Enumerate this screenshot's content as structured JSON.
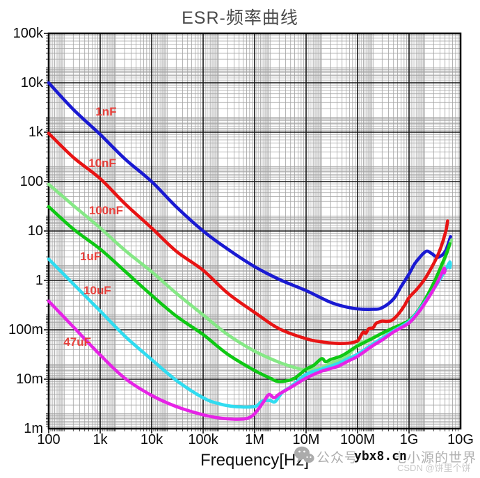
{
  "chart": {
    "title": "ESR-频率曲线"
  },
  "chart_data": {
    "type": "line",
    "title": "ESR-频率曲线",
    "xlabel": "Frequency[Hz]",
    "ylabel": "",
    "x_scale": "log",
    "y_scale": "log",
    "xlim": [
      100,
      10000000000
    ],
    "ylim": [
      0.001,
      100000
    ],
    "grid": "major-and-minor",
    "legend_position": "inline-labels",
    "label_color": "#e8413c",
    "x_ticks": [
      {
        "f": 100,
        "label": "100"
      },
      {
        "f": 1000,
        "label": "1k"
      },
      {
        "f": 10000,
        "label": "10k"
      },
      {
        "f": 100000,
        "label": "100k"
      },
      {
        "f": 1000000.0,
        "label": "1M"
      },
      {
        "f": 10000000.0,
        "label": "10M"
      },
      {
        "f": 100000000.0,
        "label": "100M"
      },
      {
        "f": 1000000000.0,
        "label": "1G"
      },
      {
        "f": 10000000000.0,
        "label": "10G"
      }
    ],
    "y_ticks": [
      {
        "v": 100000,
        "label": "100k"
      },
      {
        "v": 10000,
        "label": "10k"
      },
      {
        "v": 1000,
        "label": "1k"
      },
      {
        "v": 100,
        "label": "100"
      },
      {
        "v": 10,
        "label": "10"
      },
      {
        "v": 1,
        "label": "1"
      },
      {
        "v": 0.1,
        "label": "100m"
      },
      {
        "v": 0.01,
        "label": "10m"
      },
      {
        "v": 0.001,
        "label": "1m"
      }
    ],
    "series": [
      {
        "name": "1nF",
        "label": "1nF",
        "color": "#1a1ad2",
        "label_f": 1300,
        "label_r": 2600,
        "points": [
          [
            100,
            10000
          ],
          [
            300,
            2900
          ],
          [
            1000,
            900
          ],
          [
            3000,
            290
          ],
          [
            10000,
            100
          ],
          [
            30000,
            31
          ],
          [
            100000,
            10
          ],
          [
            300000,
            4.3
          ],
          [
            1000000.0,
            1.9
          ],
          [
            3000000.0,
            1.05
          ],
          [
            10000000.0,
            0.62
          ],
          [
            30000000.0,
            0.36
          ],
          [
            60000000.0,
            0.29
          ],
          [
            100000000.0,
            0.265
          ],
          [
            200000000.0,
            0.26
          ],
          [
            300000000.0,
            0.28
          ],
          [
            500000000.0,
            0.42
          ],
          [
            700000000.0,
            0.75
          ],
          [
            1000000000.0,
            1.35
          ],
          [
            1260000000.0,
            2.1
          ],
          [
            1600000000.0,
            2.9
          ],
          [
            2000000000.0,
            3.7
          ],
          [
            2300000000.0,
            3.9
          ],
          [
            2800000000.0,
            3.45
          ],
          [
            3500000000.0,
            2.95
          ],
          [
            4400000000.0,
            3.25
          ],
          [
            5200000000.0,
            4.1
          ],
          [
            5800000000.0,
            5.6
          ],
          [
            6400000000.0,
            7.7
          ]
        ]
      },
      {
        "name": "100nF",
        "label": "100nF",
        "color": "#86e886",
        "label_f": 1300,
        "label_r": 26,
        "points": [
          [
            100,
            88
          ],
          [
            300,
            33
          ],
          [
            1000,
            11.5
          ],
          [
            3000,
            4.1
          ],
          [
            10000,
            1.5
          ],
          [
            30000,
            0.55
          ],
          [
            100000,
            0.2
          ],
          [
            300000,
            0.08
          ],
          [
            1000000.0,
            0.037
          ],
          [
            3000000.0,
            0.022
          ],
          [
            7000000.0,
            0.0165
          ],
          [
            10000000.0,
            0.0155
          ],
          [
            20000000.0,
            0.017
          ],
          [
            30000000.0,
            0.021
          ],
          [
            60000000.0,
            0.028
          ],
          [
            100000000.0,
            0.05
          ],
          [
            160000000.0,
            0.062
          ],
          [
            250000000.0,
            0.078
          ],
          [
            400000000.0,
            0.095
          ],
          [
            630000000.0,
            0.115
          ],
          [
            1000000000.0,
            0.14
          ],
          [
            1600000000.0,
            0.24
          ],
          [
            2500000000.0,
            0.55
          ],
          [
            3500000000.0,
            1.15
          ],
          [
            4500000000.0,
            2.1
          ],
          [
            5500000000.0,
            3.8
          ],
          [
            6700000000.0,
            6.6
          ]
        ]
      },
      {
        "name": "1uF",
        "label": "1uF",
        "color": "#0fc814",
        "label_f": 650,
        "label_r": 3.0,
        "points": [
          [
            100,
            31
          ],
          [
            300,
            11
          ],
          [
            1000,
            4.3
          ],
          [
            3000,
            1.55
          ],
          [
            10000,
            0.5
          ],
          [
            30000,
            0.19
          ],
          [
            100000,
            0.08
          ],
          [
            300000,
            0.032
          ],
          [
            1000000.0,
            0.015
          ],
          [
            2000000.0,
            0.0105
          ],
          [
            2800000.0,
            0.009
          ],
          [
            4000000.0,
            0.0092
          ],
          [
            6000000.0,
            0.0105
          ],
          [
            10000000.0,
            0.016
          ],
          [
            14000000.0,
            0.019
          ],
          [
            20000000.0,
            0.026
          ],
          [
            24000000.0,
            0.0225
          ],
          [
            30000000.0,
            0.025
          ],
          [
            50000000.0,
            0.03
          ],
          [
            80000000.0,
            0.041
          ],
          [
            100000000.0,
            0.047
          ],
          [
            200000000.0,
            0.068
          ],
          [
            300000000.0,
            0.085
          ],
          [
            500000000.0,
            0.11
          ],
          [
            1000000000.0,
            0.155
          ],
          [
            1600000000.0,
            0.27
          ],
          [
            2500000000.0,
            0.6
          ],
          [
            3500000000.0,
            1.25
          ],
          [
            4500000000.0,
            2.3
          ],
          [
            5400000000.0,
            3.6
          ],
          [
            6200000000.0,
            5.5
          ]
        ]
      },
      {
        "name": "10uF",
        "label": "10uF",
        "color": "#30dcf0",
        "label_f": 880,
        "label_r": 0.62,
        "points": [
          [
            100,
            2.7
          ],
          [
            300,
            0.85
          ],
          [
            1000,
            0.24
          ],
          [
            3000,
            0.075
          ],
          [
            10000,
            0.025
          ],
          [
            30000,
            0.0095
          ],
          [
            100000,
            0.0042
          ],
          [
            200000,
            0.0032
          ],
          [
            400000,
            0.0028
          ],
          [
            1000000.0,
            0.0028
          ],
          [
            1400000.0,
            0.0036
          ],
          [
            2000000.0,
            0.0037
          ],
          [
            2500000.0,
            0.0035
          ],
          [
            3500000.0,
            0.0055
          ],
          [
            5000000.0,
            0.007
          ],
          [
            10000000.0,
            0.0125
          ],
          [
            20000000.0,
            0.016
          ],
          [
            40000000.0,
            0.0205
          ],
          [
            70000000.0,
            0.027
          ],
          [
            100000000.0,
            0.032
          ],
          [
            200000000.0,
            0.052
          ],
          [
            300000000.0,
            0.068
          ],
          [
            500000000.0,
            0.095
          ],
          [
            1000000000.0,
            0.148
          ],
          [
            1600000000.0,
            0.26
          ],
          [
            2500000000.0,
            0.5
          ],
          [
            3500000000.0,
            0.85
          ],
          [
            4500000000.0,
            1.3
          ],
          [
            5500000000.0,
            1.9
          ],
          [
            6200000000.0,
            2.35
          ],
          [
            6350000000.0,
            2.1
          ],
          [
            6200000000.0,
            1.8
          ]
        ]
      },
      {
        "name": "47uF",
        "label": "47uF",
        "color": "#e623e6",
        "label_f": 360,
        "label_r": 0.056,
        "points": [
          [
            100,
            0.38
          ],
          [
            300,
            0.115
          ],
          [
            1000,
            0.031
          ],
          [
            3000,
            0.0105
          ],
          [
            10000,
            0.0047
          ],
          [
            30000,
            0.0028
          ],
          [
            100000,
            0.0019
          ],
          [
            200000,
            0.00165
          ],
          [
            400000,
            0.00155
          ],
          [
            700000,
            0.0016
          ],
          [
            1000000.0,
            0.002
          ],
          [
            1500000.0,
            0.0035
          ],
          [
            1900000.0,
            0.0049
          ],
          [
            2400000.0,
            0.0042
          ],
          [
            3000000.0,
            0.005
          ],
          [
            5000000.0,
            0.0068
          ],
          [
            10000000.0,
            0.0105
          ],
          [
            20000000.0,
            0.0145
          ],
          [
            40000000.0,
            0.018
          ],
          [
            70000000.0,
            0.024
          ],
          [
            100000000.0,
            0.029
          ],
          [
            200000000.0,
            0.048
          ],
          [
            300000000.0,
            0.062
          ],
          [
            500000000.0,
            0.09
          ],
          [
            1000000000.0,
            0.138
          ],
          [
            1600000000.0,
            0.24
          ],
          [
            2500000000.0,
            0.48
          ],
          [
            3200000000.0,
            0.75
          ],
          [
            3900000000.0,
            1.1
          ],
          [
            4400000000.0,
            1.45
          ],
          [
            4800000000.0,
            1.75
          ],
          [
            5000000000.0,
            1.62
          ],
          [
            4850000000.0,
            1.42
          ]
        ]
      },
      {
        "name": "10nF",
        "label": "10nF",
        "color": "#e81414",
        "label_f": 1100,
        "label_r": 230,
        "points": [
          [
            100,
            950
          ],
          [
            300,
            310
          ],
          [
            1000,
            115
          ],
          [
            3000,
            36
          ],
          [
            10000,
            11.5
          ],
          [
            30000,
            3.9
          ],
          [
            100000,
            1.6
          ],
          [
            300000,
            0.55
          ],
          [
            1000000.0,
            0.225
          ],
          [
            3000000.0,
            0.105
          ],
          [
            10000000.0,
            0.066
          ],
          [
            20000000.0,
            0.057
          ],
          [
            40000000.0,
            0.053
          ],
          [
            70000000.0,
            0.054
          ],
          [
            100000000.0,
            0.06
          ],
          [
            115000000.0,
            0.075
          ],
          [
            130000000.0,
            0.09
          ],
          [
            145000000.0,
            0.085
          ],
          [
            165000000.0,
            0.105
          ],
          [
            200000000.0,
            0.11
          ],
          [
            230000000.0,
            0.135
          ],
          [
            300000000.0,
            0.15
          ],
          [
            360000000.0,
            0.148
          ],
          [
            460000000.0,
            0.155
          ],
          [
            600000000.0,
            0.2
          ],
          [
            800000000.0,
            0.3
          ],
          [
            1000000000.0,
            0.45
          ],
          [
            1400000000.0,
            0.65
          ],
          [
            2000000000.0,
            1.05
          ],
          [
            2800000000.0,
            1.9
          ],
          [
            3500000000.0,
            3.0
          ],
          [
            4200000000.0,
            4.8
          ],
          [
            4800000000.0,
            7.5
          ],
          [
            5300000000.0,
            11
          ],
          [
            5600000000.0,
            16
          ]
        ]
      }
    ]
  },
  "watermark": {
    "icon": "wechat-icon",
    "prefix": "公众号",
    "overlay": "ybx8.cn",
    "suffix": "电小源的世界",
    "csdn": "CSDN @饼里个饼"
  }
}
